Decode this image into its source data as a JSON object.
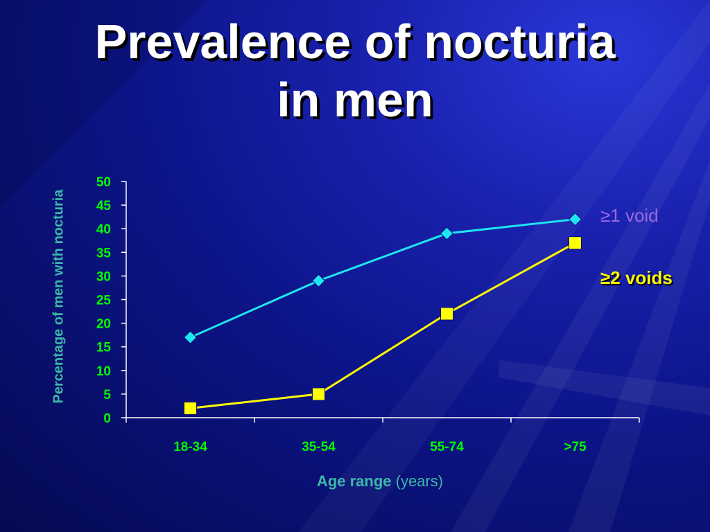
{
  "slide": {
    "title_line1": "Prevalence of nocturia",
    "title_line2": "in men"
  },
  "chart_data": {
    "type": "line",
    "categories": [
      "18-34",
      "35-54",
      "55-74",
      ">75"
    ],
    "series": [
      {
        "name": "≥1 void",
        "values": [
          17,
          29,
          39,
          42
        ],
        "color": "#1ee6f0",
        "marker": "diamond"
      },
      {
        "name": "≥2 voids",
        "values": [
          2,
          5,
          22,
          37
        ],
        "color": "#ffff00",
        "marker": "square"
      }
    ],
    "ylabel": "Percentage of men with nocturia",
    "xlabel_main": "Age range",
    "xlabel_unit": "(years)",
    "ylim": [
      0,
      50
    ],
    "yticks": [
      0,
      5,
      10,
      15,
      20,
      25,
      30,
      35,
      40,
      45,
      50
    ],
    "grid": false,
    "legend_placement": "right",
    "colors": {
      "axis_text": "#00ff00",
      "axis_label": "#3cb8a8",
      "axis_line": "#ffffff"
    }
  }
}
